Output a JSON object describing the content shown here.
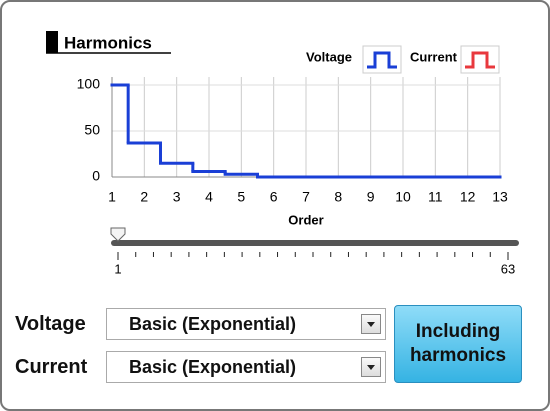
{
  "header": {
    "title": "Harmonics"
  },
  "chart_data": {
    "type": "line",
    "step": "mid",
    "x_label": "Order",
    "x": [
      1,
      2,
      3,
      4,
      5,
      6,
      7,
      8,
      9,
      10,
      11,
      12,
      13
    ],
    "series": [
      {
        "name": "Voltage",
        "color": "#1a3fd6",
        "values": [
          100,
          37,
          15,
          6,
          3,
          0,
          0,
          0,
          0,
          0,
          0,
          0,
          0
        ]
      },
      {
        "name": "Current",
        "color": "#e8383d",
        "values": [
          null,
          null,
          null,
          null,
          null,
          null,
          null,
          null,
          null,
          null,
          null,
          null,
          null
        ]
      }
    ],
    "xlim": [
      1,
      13
    ],
    "xticks": [
      1,
      2,
      3,
      4,
      5,
      6,
      7,
      8,
      9,
      10,
      11,
      12,
      13
    ],
    "ylim": [
      0,
      100
    ],
    "yticks": [
      0,
      50,
      100
    ],
    "grid": true
  },
  "slider": {
    "min": 1,
    "max": 63,
    "value": 1
  },
  "controls": [
    {
      "label": "Voltage",
      "value": "Basic (Exponential)"
    },
    {
      "label": "Current",
      "value": "Basic (Exponential)"
    }
  ],
  "button": {
    "label": "Including harmonics"
  }
}
